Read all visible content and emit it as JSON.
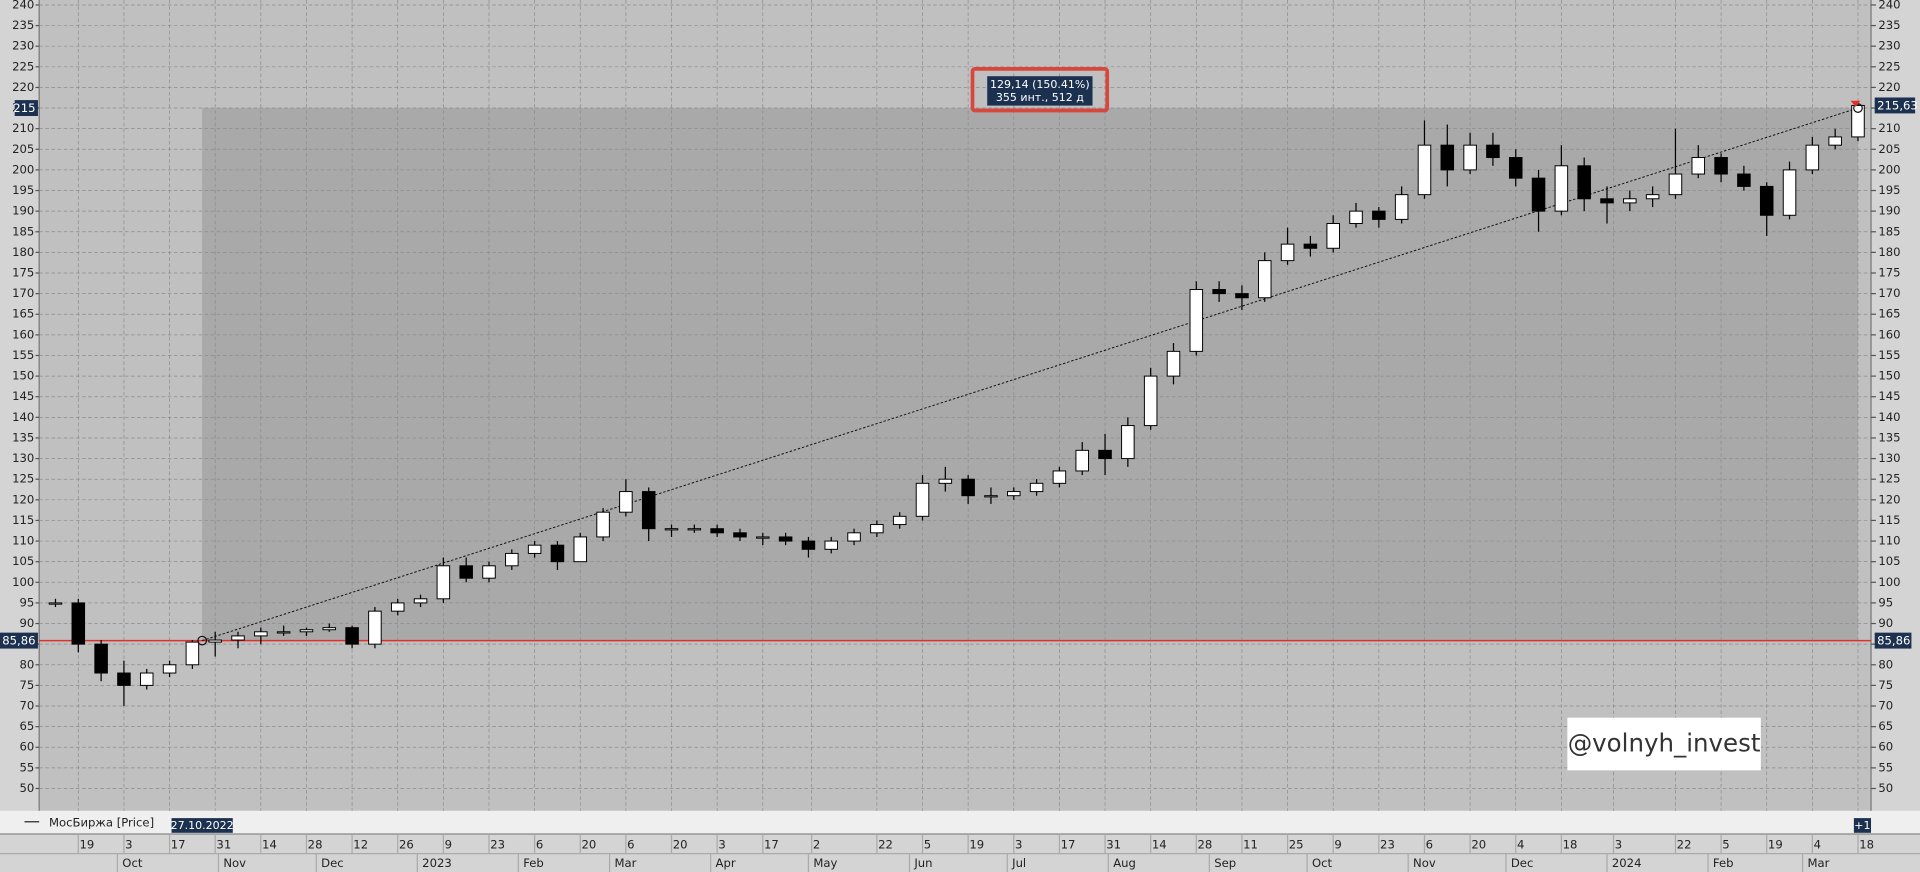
{
  "chart_data": {
    "type": "candlestick",
    "series_name": "МосБиржа [Price]",
    "x": [
      "2022-09-12",
      "2022-09-19",
      "2022-09-26",
      "2022-10-03",
      "2022-10-10",
      "2022-10-17",
      "2022-10-24",
      "2022-10-31",
      "2022-11-07",
      "2022-11-14",
      "2022-11-21",
      "2022-11-28",
      "2022-12-05",
      "2022-12-12",
      "2022-12-19",
      "2022-12-26",
      "2023-01-02",
      "2023-01-09",
      "2023-01-16",
      "2023-01-23",
      "2023-01-30",
      "2023-02-06",
      "2023-02-13",
      "2023-02-20",
      "2023-02-27",
      "2023-03-06",
      "2023-03-13",
      "2023-03-20",
      "2023-03-27",
      "2023-04-03",
      "2023-04-10",
      "2023-04-17",
      "2023-04-24",
      "2023-05-01",
      "2023-05-08",
      "2023-05-15",
      "2023-05-22",
      "2023-05-29",
      "2023-06-05",
      "2023-06-12",
      "2023-06-19",
      "2023-06-26",
      "2023-07-03",
      "2023-07-10",
      "2023-07-17",
      "2023-07-24",
      "2023-07-31",
      "2023-08-07",
      "2023-08-14",
      "2023-08-21",
      "2023-08-28",
      "2023-09-04",
      "2023-09-11",
      "2023-09-18",
      "2023-09-25",
      "2023-10-02",
      "2023-10-09",
      "2023-10-16",
      "2023-10-23",
      "2023-10-30",
      "2023-11-06",
      "2023-11-13",
      "2023-11-20",
      "2023-11-27",
      "2023-12-04",
      "2023-12-11",
      "2023-12-18",
      "2023-12-25",
      "2024-01-01",
      "2024-01-08",
      "2024-01-15",
      "2024-01-22",
      "2024-01-29",
      "2024-02-05",
      "2024-02-12",
      "2024-02-19",
      "2024-02-26",
      "2024-03-04",
      "2024-03-11",
      "2024-03-18"
    ],
    "open": [
      95,
      95,
      85,
      78,
      75,
      78,
      80,
      85.5,
      86,
      87,
      88,
      88,
      88.5,
      89,
      85,
      93,
      95,
      96,
      104,
      101,
      104,
      107,
      109,
      105,
      111,
      117,
      122,
      113,
      113,
      113,
      112,
      111,
      111,
      110,
      108,
      110,
      112,
      114,
      116,
      124,
      125,
      121,
      121,
      122,
      124,
      127,
      132,
      130,
      138,
      150,
      156,
      171,
      170,
      169,
      178,
      182,
      181,
      187,
      190,
      188,
      194,
      206,
      200,
      206,
      203,
      198,
      190,
      201,
      193,
      192,
      193,
      194,
      199,
      203,
      199,
      196,
      189,
      200,
      206,
      208
    ],
    "high": [
      96,
      96,
      86,
      81,
      79,
      81,
      86,
      88,
      88,
      89,
      89.5,
      89,
      90,
      89.5,
      94,
      96,
      97,
      106,
      106,
      105,
      108,
      110,
      110,
      112,
      118,
      125,
      123,
      114,
      114,
      114,
      113,
      112,
      112,
      111,
      111,
      113,
      115,
      117,
      126,
      128,
      126,
      123,
      123,
      125,
      128,
      134,
      136,
      140,
      152,
      158,
      173,
      173,
      172,
      180,
      186,
      184,
      189,
      192,
      191,
      196,
      212,
      211,
      209,
      209,
      205,
      200,
      206,
      203,
      196,
      195,
      196,
      210,
      206,
      204,
      201,
      197,
      202,
      208,
      210,
      216
    ],
    "low": [
      94,
      83,
      76,
      70,
      74,
      77,
      79,
      82,
      84,
      85,
      87,
      87,
      88,
      84,
      84,
      92,
      94,
      95,
      100,
      100,
      103,
      106,
      103,
      105,
      110,
      116,
      110,
      111,
      112,
      111,
      110,
      109,
      109,
      106,
      107,
      109,
      111,
      113,
      115,
      122,
      119,
      119,
      120,
      121,
      123,
      126,
      126,
      128,
      137,
      148,
      155,
      168,
      166,
      168,
      177,
      179,
      180,
      186,
      186,
      187,
      193,
      196,
      199,
      201,
      196,
      185,
      189,
      190,
      187,
      190,
      191,
      193,
      198,
      197,
      195,
      184,
      188,
      199,
      205,
      207
    ],
    "close": [
      95,
      85,
      78,
      75,
      78,
      80,
      85.5,
      86,
      87,
      88,
      88,
      88.5,
      89,
      85,
      93,
      95,
      96,
      104,
      101,
      104,
      107,
      109,
      105,
      111,
      117,
      122,
      113,
      113,
      113,
      112,
      111,
      111,
      110,
      108,
      110,
      112,
      114,
      116,
      124,
      125,
      121,
      121,
      122,
      124,
      127,
      132,
      130,
      138,
      150,
      156,
      171,
      170,
      169,
      178,
      182,
      181,
      187,
      190,
      188,
      194,
      206,
      200,
      206,
      203,
      198,
      190,
      201,
      193,
      192,
      193,
      194,
      199,
      203,
      199,
      196,
      189,
      200,
      206,
      208,
      215.63
    ],
    "xlim": [
      "2022-09-07",
      "2024-03-22"
    ],
    "ylim": [
      44.6,
      241.2
    ],
    "yticks": [
      50,
      55,
      60,
      65,
      70,
      75,
      80,
      85,
      90,
      95,
      100,
      105,
      110,
      115,
      120,
      125,
      130,
      135,
      140,
      145,
      150,
      155,
      160,
      165,
      170,
      175,
      180,
      185,
      190,
      195,
      200,
      205,
      210,
      215,
      220,
      225,
      230,
      235,
      240
    ],
    "xticks": [
      {
        "value": "2022-09-19",
        "label": "19"
      },
      {
        "value": "2022-10-03",
        "label": "3"
      },
      {
        "value": "2022-10-17",
        "label": "17"
      },
      {
        "value": "2022-10-31",
        "label": "31"
      },
      {
        "value": "2022-11-14",
        "label": "14"
      },
      {
        "value": "2022-11-28",
        "label": "28"
      },
      {
        "value": "2022-12-12",
        "label": "12"
      },
      {
        "value": "2022-12-26",
        "label": "26"
      },
      {
        "value": "2023-01-09",
        "label": "9"
      },
      {
        "value": "2023-01-23",
        "label": "23"
      },
      {
        "value": "2023-02-06",
        "label": "6"
      },
      {
        "value": "2023-02-20",
        "label": "20"
      },
      {
        "value": "2023-03-06",
        "label": "6"
      },
      {
        "value": "2023-03-20",
        "label": "20"
      },
      {
        "value": "2023-04-03",
        "label": "3"
      },
      {
        "value": "2023-04-17",
        "label": "17"
      },
      {
        "value": "2023-05-02",
        "label": "2"
      },
      {
        "value": "2023-05-22",
        "label": "22"
      },
      {
        "value": "2023-06-05",
        "label": "5"
      },
      {
        "value": "2023-06-19",
        "label": "19"
      },
      {
        "value": "2023-07-03",
        "label": "3"
      },
      {
        "value": "2023-07-17",
        "label": "17"
      },
      {
        "value": "2023-07-31",
        "label": "31"
      },
      {
        "value": "2023-08-14",
        "label": "14"
      },
      {
        "value": "2023-08-28",
        "label": "28"
      },
      {
        "value": "2023-09-11",
        "label": "11"
      },
      {
        "value": "2023-09-25",
        "label": "25"
      },
      {
        "value": "2023-10-09",
        "label": "9"
      },
      {
        "value": "2023-10-23",
        "label": "23"
      },
      {
        "value": "2023-11-06",
        "label": "6"
      },
      {
        "value": "2023-11-20",
        "label": "20"
      },
      {
        "value": "2023-12-04",
        "label": "4"
      },
      {
        "value": "2023-12-18",
        "label": "18"
      },
      {
        "value": "2024-01-03",
        "label": "3"
      },
      {
        "value": "2024-01-22",
        "label": "22"
      },
      {
        "value": "2024-02-05",
        "label": "5"
      },
      {
        "value": "2024-02-19",
        "label": "19"
      },
      {
        "value": "2024-03-04",
        "label": "4"
      },
      {
        "value": "2024-03-18",
        "label": "18"
      }
    ],
    "month_ticks": [
      {
        "value": "2022-10-01",
        "label": "Oct"
      },
      {
        "value": "2022-11-01",
        "label": "Nov"
      },
      {
        "value": "2022-12-01",
        "label": "Dec"
      },
      {
        "value": "2023-01-01",
        "label": "2023"
      },
      {
        "value": "2023-02-01",
        "label": "Feb"
      },
      {
        "value": "2023-03-01",
        "label": "Mar"
      },
      {
        "value": "2023-04-01",
        "label": "Apr"
      },
      {
        "value": "2023-05-01",
        "label": "May"
      },
      {
        "value": "2023-06-01",
        "label": "Jun"
      },
      {
        "value": "2023-07-01",
        "label": "Jul"
      },
      {
        "value": "2023-08-01",
        "label": "Aug"
      },
      {
        "value": "2023-09-01",
        "label": "Sep"
      },
      {
        "value": "2023-10-01",
        "label": "Oct"
      },
      {
        "value": "2023-11-01",
        "label": "Nov"
      },
      {
        "value": "2023-12-01",
        "label": "Dec"
      },
      {
        "value": "2024-01-01",
        "label": "2024"
      },
      {
        "value": "2024-02-01",
        "label": "Feb"
      },
      {
        "value": "2024-03-01",
        "label": "Mar"
      }
    ],
    "grid": true,
    "hline": {
      "value": 85.86,
      "label": "85,86",
      "color": "#e0302a"
    },
    "last_price": {
      "value": 215.63,
      "label": "215,63"
    },
    "measure": {
      "start": {
        "value": "2022-10-27",
        "label": "27.10.2022"
      },
      "start_value": 85.86,
      "end_value": {
        "value": 215,
        "label": "215"
      },
      "change_label": "129,14 (150.41%)",
      "span_label": "355 инт., 512 д"
    },
    "more_label": "+1",
    "watermark": "@volnyh_invest"
  }
}
